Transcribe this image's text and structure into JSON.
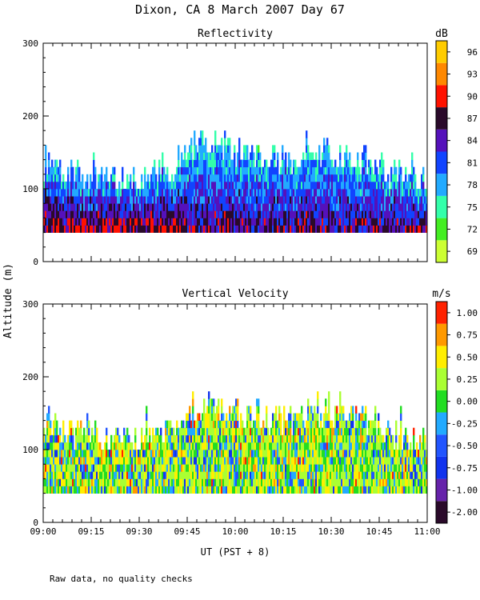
{
  "figure": {
    "title": "Dixon, CA  8 March 2007  Day  67",
    "ylabel": "Altitude (m)",
    "xlabel": "UT   (PST + 8)",
    "footnote": "Raw data, no quality checks",
    "x_ticks": [
      "09:00",
      "09:15",
      "09:30",
      "09:45",
      "10:00",
      "10:15",
      "10:30",
      "10:45",
      "11:00"
    ]
  },
  "chart_data": [
    {
      "type": "heatmap",
      "title": "Reflectivity",
      "xlabel": "UT   (PST + 8)",
      "ylabel": "Altitude (m)",
      "x_range": [
        "09:00",
        "11:00"
      ],
      "ylim": [
        0,
        300
      ],
      "y_ticks": [
        "0",
        "100",
        "200",
        "300"
      ],
      "colorbar": {
        "unit": "dB",
        "levels": [
          "69",
          "72",
          "75",
          "78",
          "81",
          "84",
          "87",
          "90",
          "93",
          "96"
        ],
        "colors": [
          "#ccff33",
          "#44ee22",
          "#33ffaa",
          "#22aaff",
          "#1144ff",
          "#5511bb",
          "#2a0a2a",
          "#ff1100",
          "#ff8800",
          "#ffcc00"
        ]
      },
      "data_extent": {
        "bottom_altitude_m": 40,
        "typical_top_m": 120,
        "max_top_m": 180
      },
      "echo_top_profile": {
        "time_min": [
          0,
          10,
          20,
          30,
          40,
          50,
          60,
          70,
          80,
          90,
          100,
          110,
          120
        ],
        "top_m": [
          130,
          120,
          115,
          110,
          130,
          165,
          150,
          140,
          145,
          150,
          140,
          120,
          110
        ]
      }
    },
    {
      "type": "heatmap",
      "title": "Vertical Velocity",
      "xlabel": "UT   (PST + 8)",
      "ylabel": "Altitude (m)",
      "x_range": [
        "09:00",
        "11:00"
      ],
      "ylim": [
        0,
        300
      ],
      "y_ticks": [
        "0",
        "100",
        "200",
        "300"
      ],
      "colorbar": {
        "unit": "m/s",
        "levels": [
          "-2.00",
          "-1.00",
          "-0.75",
          "-0.50",
          "-0.25",
          "0.00",
          "0.25",
          "0.50",
          "0.75",
          "1.00"
        ],
        "colors": [
          "#2a0a2a",
          "#6622aa",
          "#1133ee",
          "#2255ff",
          "#22aaff",
          "#22dd22",
          "#aaff33",
          "#ffee00",
          "#ff9900",
          "#ff2200"
        ]
      },
      "data_extent": {
        "bottom_altitude_m": 40,
        "typical_top_m": 120,
        "max_top_m": 180
      }
    }
  ]
}
